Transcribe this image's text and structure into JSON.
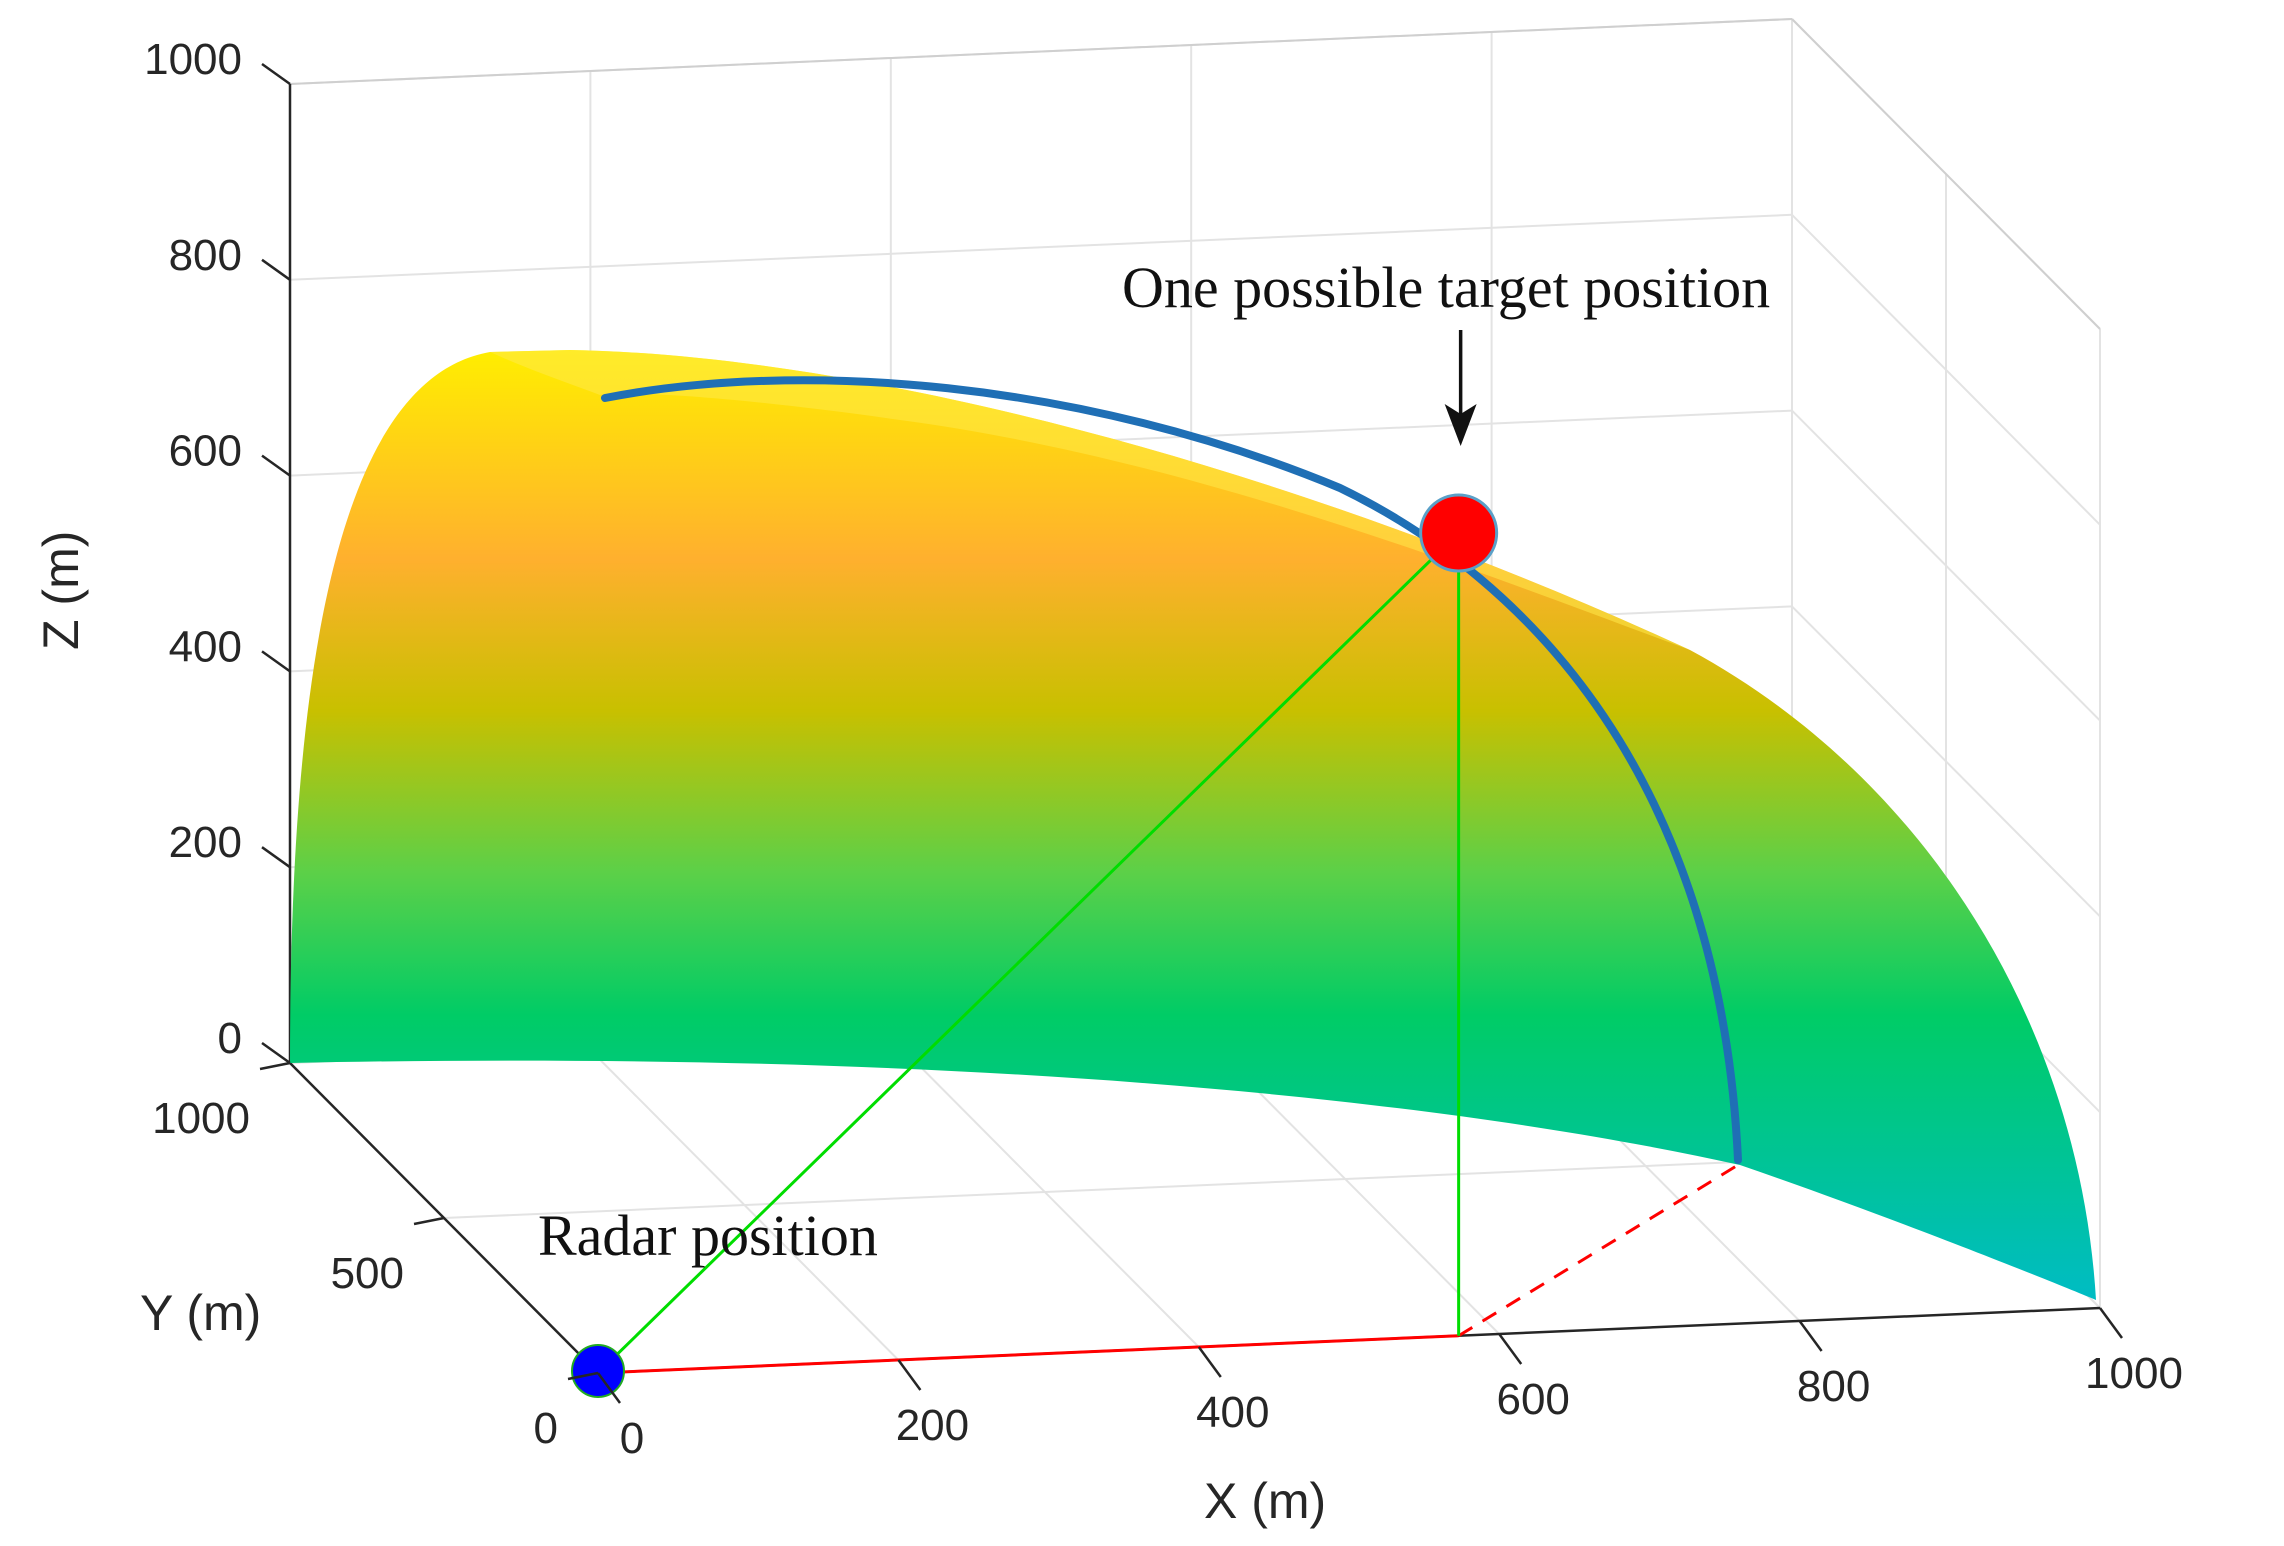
{
  "chart_data": {
    "type": "surface3d",
    "xlabel": "X (m)",
    "ylabel": "Y (m)",
    "zlabel": "Z (m)",
    "xlim": [
      0,
      1000
    ],
    "ylim": [
      0,
      1000
    ],
    "zlim": [
      0,
      1000
    ],
    "x_ticks": [
      0,
      200,
      400,
      600,
      800,
      1000
    ],
    "y_ticks": [
      0,
      500,
      1000
    ],
    "z_ticks": [
      0,
      200,
      400,
      600,
      800,
      1000
    ],
    "x_tick_labels": [
      "0",
      "200",
      "400",
      "600",
      "800",
      "1000"
    ],
    "y_tick_labels": [
      "0",
      "500",
      "1000"
    ],
    "z_tick_labels": [
      "0",
      "200",
      "400",
      "600",
      "800",
      "1000"
    ],
    "grid": true,
    "surface": {
      "description_kind": "spherical shell (quarter) of constant range around radar",
      "radius": 1000,
      "colormap": [
        "#00bfc4",
        "#00cc66",
        "#8fd13a",
        "#ffb02e",
        "#ffea00"
      ]
    },
    "radar_position": {
      "x": 0,
      "y": 0,
      "z": 0,
      "color": "#0000ff"
    },
    "target_position": {
      "x": 573,
      "y": 0,
      "z": 820,
      "color": "#ff0000"
    },
    "arc_curve": {
      "color": "#1f6fb5"
    },
    "ground_line": {
      "color": "#ff0000"
    },
    "line_of_sight": {
      "color": "#00dd00"
    },
    "annotations": {
      "target": "One possible target position",
      "radar": "Radar position"
    }
  }
}
